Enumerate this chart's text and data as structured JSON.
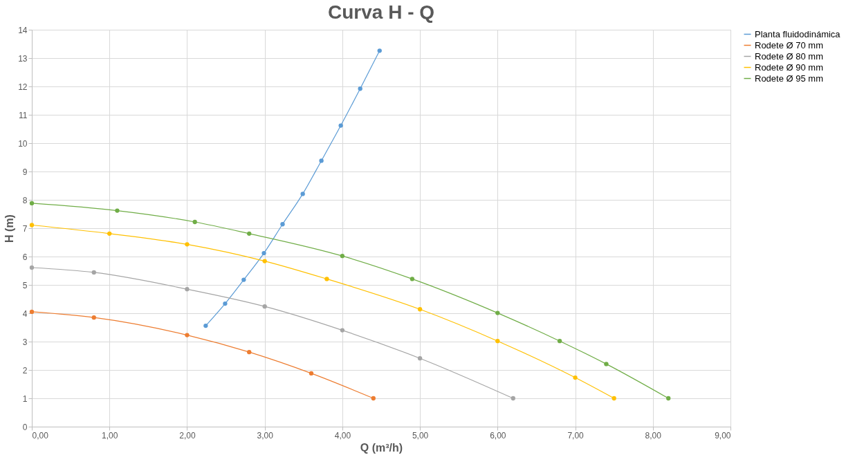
{
  "chart_data": {
    "type": "line",
    "title": "Curva H - Q",
    "xlabel": "Q (m³/h)",
    "ylabel": "H (m)",
    "xlim": [
      0,
      9
    ],
    "ylim": [
      0,
      14
    ],
    "xticks": [
      {
        "value": 0,
        "label": "0,00"
      },
      {
        "value": 1,
        "label": "1,00"
      },
      {
        "value": 2,
        "label": "2,00"
      },
      {
        "value": 3,
        "label": "3,00"
      },
      {
        "value": 4,
        "label": "4,00"
      },
      {
        "value": 5,
        "label": "5,00"
      },
      {
        "value": 6,
        "label": "6,00"
      },
      {
        "value": 7,
        "label": "7,00"
      },
      {
        "value": 8,
        "label": "8,00"
      },
      {
        "value": 9,
        "label": "9,00"
      }
    ],
    "yticks": [
      0,
      1,
      2,
      3,
      4,
      5,
      6,
      7,
      8,
      9,
      10,
      11,
      12,
      13,
      14
    ],
    "grid": true,
    "legend": "right",
    "marker": "circle",
    "line_style": "solid",
    "series": [
      {
        "name": "Planta fluidodinámica",
        "color": "#5b9bd5",
        "x": [
          2.24,
          2.49,
          2.73,
          2.99,
          3.23,
          3.49,
          3.73,
          3.98,
          4.23,
          4.48
        ],
        "values": [
          3.56,
          4.34,
          5.18,
          6.12,
          7.14,
          8.21,
          9.38,
          10.62,
          11.92,
          13.26
        ]
      },
      {
        "name": "Rodete Ø 70 mm",
        "color": "#ed7d31",
        "x": [
          0,
          0.8,
          2.0,
          2.8,
          3.6,
          4.4
        ],
        "values": [
          4.05,
          3.85,
          3.23,
          2.63,
          1.88,
          1.0
        ]
      },
      {
        "name": "Rodete Ø 80 mm",
        "color": "#a5a5a5",
        "x": [
          0,
          0.8,
          2.0,
          3.0,
          4.0,
          5.0,
          6.2
        ],
        "values": [
          5.61,
          5.44,
          4.85,
          4.24,
          3.4,
          2.41,
          1.0
        ]
      },
      {
        "name": "Rodete Ø 90 mm",
        "color": "#ffc000",
        "x": [
          0,
          1.0,
          2.0,
          3.0,
          3.8,
          5.0,
          6.0,
          7.0,
          7.5
        ],
        "values": [
          7.11,
          6.81,
          6.43,
          5.84,
          5.21,
          4.14,
          3.02,
          1.73,
          1.0
        ]
      },
      {
        "name": "Rodete Ø 95 mm",
        "color": "#70ad47",
        "x": [
          0,
          1.1,
          2.1,
          2.8,
          4.0,
          4.9,
          6.0,
          6.8,
          7.4,
          8.2
        ],
        "values": [
          7.88,
          7.62,
          7.22,
          6.81,
          6.02,
          5.21,
          4.01,
          3.02,
          2.21,
          1.0
        ]
      }
    ]
  }
}
